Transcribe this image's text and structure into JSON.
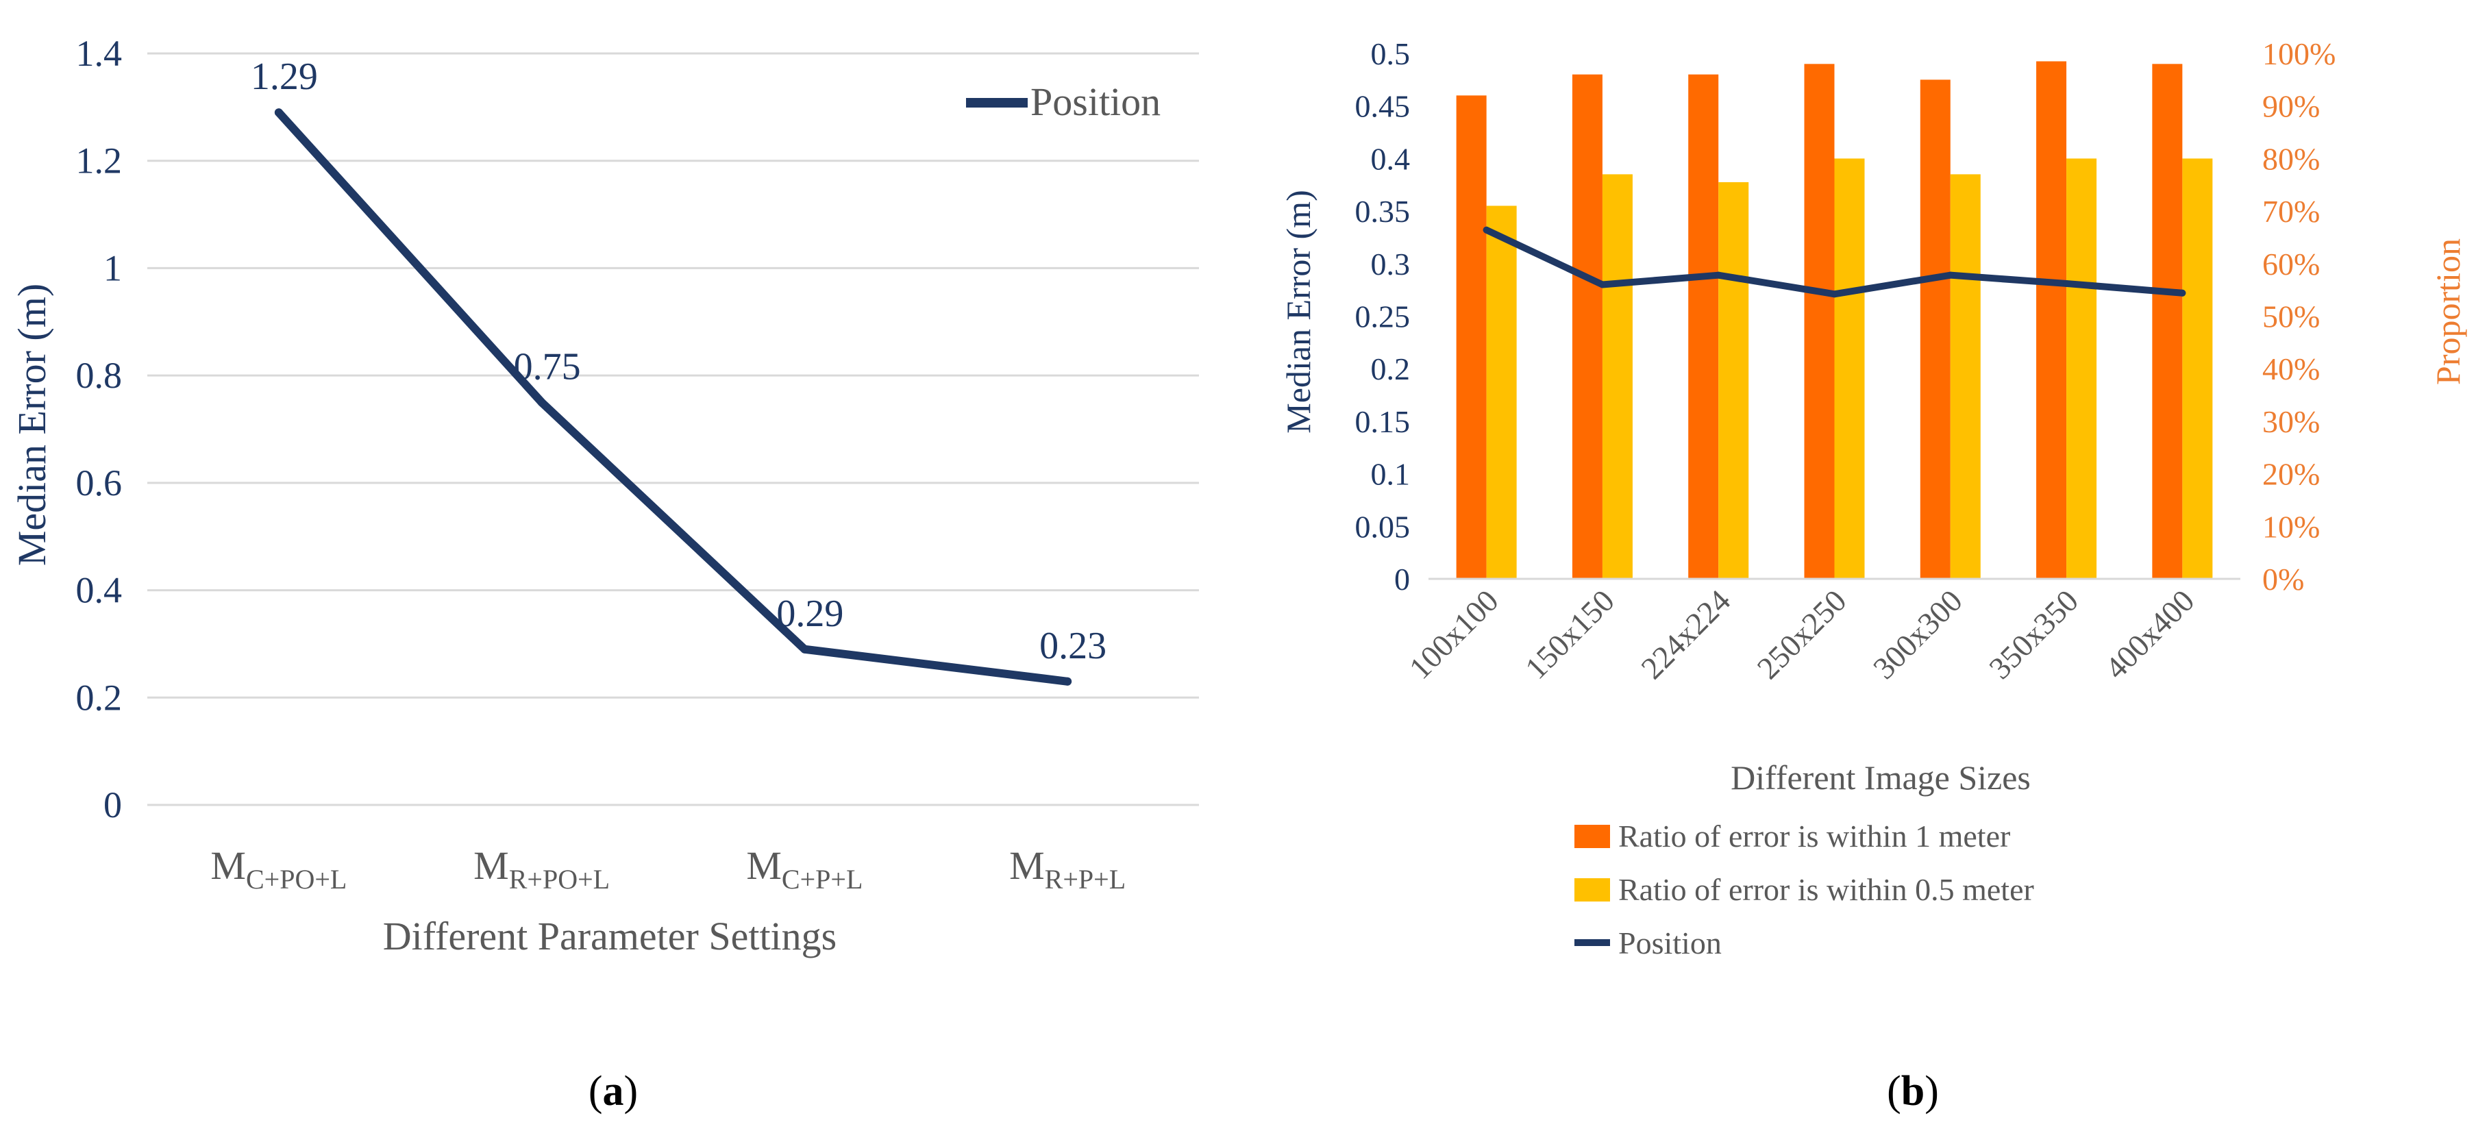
{
  "colors": {
    "navy": "#1f3864",
    "orange_bar": "#ff6a00",
    "yellow_bar": "#ffc000",
    "orange_axis_text": "#ed7d31",
    "gray_text": "#595959",
    "grid": "#d9d9d9"
  },
  "chart_data": [
    {
      "id": "a",
      "type": "line",
      "caption": "a",
      "xlabel": "Different Parameter Settings",
      "ylabel": "Median Error (m)",
      "ylim": [
        0,
        1.4
      ],
      "y_ticks": [
        "0",
        "0.2",
        "0.4",
        "0.6",
        "0.8",
        "1",
        "1.2",
        "1.4"
      ],
      "categories": [
        {
          "base": "M",
          "sub": "C+PO+L"
        },
        {
          "base": "M",
          "sub": "R+PO+L"
        },
        {
          "base": "M",
          "sub": "C+P+L"
        },
        {
          "base": "M",
          "sub": "R+P+L"
        }
      ],
      "series": [
        {
          "name": "Position",
          "values": [
            1.29,
            0.75,
            0.29,
            0.23
          ],
          "data_labels": [
            "1.29",
            "0.75",
            "0.29",
            "0.23"
          ]
        }
      ],
      "legend": "top-right",
      "grid": true
    },
    {
      "id": "b",
      "type": "bar",
      "caption": "b",
      "xlabel": "Different Image Sizes",
      "ylabel": "Median Error (m)",
      "y2label": "Proportion",
      "ylim": [
        0,
        0.5
      ],
      "y2lim": [
        0,
        1.0
      ],
      "y_ticks": [
        "0",
        "0.05",
        "0.1",
        "0.15",
        "0.2",
        "0.25",
        "0.3",
        "0.35",
        "0.4",
        "0.45",
        "0.5"
      ],
      "y2_ticks": [
        "0%",
        "10%",
        "20%",
        "30%",
        "40%",
        "50%",
        "60%",
        "70%",
        "80%",
        "90%",
        "100%"
      ],
      "categories": [
        "100x100",
        "150x150",
        "224x224",
        "250x250",
        "300x300",
        "350x350",
        "400x400"
      ],
      "series": [
        {
          "name": "Ratio of error is within 1 meter",
          "kind": "bar",
          "axis": "y2",
          "values": [
            0.92,
            0.96,
            0.96,
            0.98,
            0.95,
            0.985,
            0.98
          ]
        },
        {
          "name": "Ratio of error is within 0.5 meter",
          "kind": "bar",
          "axis": "y2",
          "values": [
            0.71,
            0.77,
            0.755,
            0.8,
            0.77,
            0.8,
            0.8
          ]
        },
        {
          "name": "Position",
          "kind": "line",
          "axis": "y",
          "values": [
            0.332,
            0.28,
            0.289,
            0.271,
            0.289,
            0.281,
            0.272
          ]
        }
      ],
      "legend": "bottom",
      "grid": false
    }
  ]
}
